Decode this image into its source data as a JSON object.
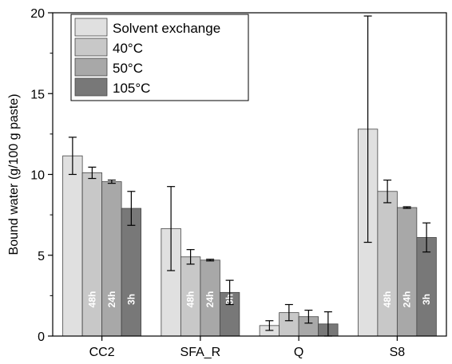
{
  "chart_data": {
    "type": "bar",
    "categories": [
      "CC2",
      "SFA_R",
      "Q",
      "S8"
    ],
    "series": [
      {
        "name": "Solvent exchange",
        "color": "#e0e0e0",
        "values": [
          11.15,
          6.65,
          0.65,
          12.8
        ],
        "errors": [
          1.15,
          2.6,
          0.3,
          7.0
        ]
      },
      {
        "name": "40°C",
        "color": "#c8c8c8",
        "values": [
          10.1,
          4.9,
          1.45,
          8.95
        ],
        "errors": [
          0.35,
          0.45,
          0.5,
          0.7
        ]
      },
      {
        "name": "50°C",
        "color": "#a8a8a8",
        "values": [
          9.55,
          4.7,
          1.2,
          7.95
        ],
        "errors": [
          0.1,
          0.05,
          0.4,
          0.05
        ]
      },
      {
        "name": "105°C",
        "color": "#787878",
        "values": [
          7.9,
          2.7,
          0.75,
          6.1
        ],
        "errors": [
          1.05,
          0.75,
          0.75,
          0.9
        ]
      }
    ],
    "bar_labels": [
      {
        "category": 0,
        "series": 1,
        "text": "48h"
      },
      {
        "category": 0,
        "series": 2,
        "text": "24h"
      },
      {
        "category": 0,
        "series": 3,
        "text": "3h"
      },
      {
        "category": 1,
        "series": 1,
        "text": "48h"
      },
      {
        "category": 1,
        "series": 2,
        "text": "24h"
      },
      {
        "category": 1,
        "series": 3,
        "text": "3h"
      },
      {
        "category": 3,
        "series": 1,
        "text": "48h"
      },
      {
        "category": 3,
        "series": 2,
        "text": "24h"
      },
      {
        "category": 3,
        "series": 3,
        "text": "3h"
      }
    ],
    "title": "",
    "xlabel": "",
    "ylabel": "Bound water (g/100 g paste)",
    "ylim": [
      0,
      20
    ],
    "yticks": [
      0,
      5,
      10,
      15,
      20
    ],
    "grid": false,
    "legend_position": "top-left"
  }
}
